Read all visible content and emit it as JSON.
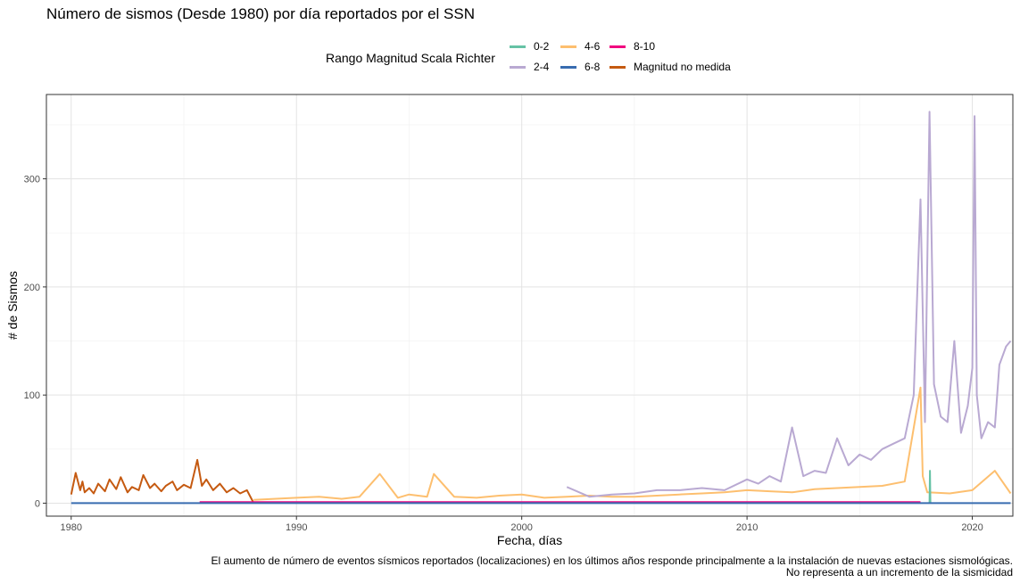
{
  "chart_data": {
    "type": "line",
    "title": "Número de sismos (Desde 1980) por día reportados por el SSN",
    "xlabel": "Fecha, días",
    "ylabel": "# de Sismos",
    "xlim": [
      1978.9,
      2021.8
    ],
    "ylim": [
      -12,
      378
    ],
    "x_ticks": [
      1980,
      1990,
      2000,
      2010,
      2020
    ],
    "y_ticks": [
      0,
      100,
      200,
      300
    ],
    "grid": true,
    "legend": {
      "title": "Rango Magnitud Scala Richter",
      "position": "top",
      "entries": [
        {
          "label": "0-2",
          "color": "#66c2a5"
        },
        {
          "label": "2-4",
          "color": "#b9a9d2"
        },
        {
          "label": "4-6",
          "color": "#fdbf6f"
        },
        {
          "label": "6-8",
          "color": "#386cb0"
        },
        {
          "label": "8-10",
          "color": "#f0027f"
        },
        {
          "label": "Magnitud no medida",
          "color": "#c55a11"
        }
      ]
    },
    "series": [
      {
        "name": "Magnitud no medida",
        "color": "#c55a11",
        "x": [
          1980.0,
          1980.2,
          1980.4,
          1980.5,
          1980.6,
          1980.8,
          1981.0,
          1981.2,
          1981.5,
          1981.7,
          1982.0,
          1982.2,
          1982.5,
          1982.7,
          1983.0,
          1983.2,
          1983.5,
          1983.7,
          1984.0,
          1984.2,
          1984.5,
          1984.7,
          1985.0,
          1985.3,
          1985.6,
          1985.8,
          1986.0,
          1986.3,
          1986.6,
          1986.9,
          1987.2,
          1987.5,
          1987.8,
          1988.1
        ],
        "y": [
          8,
          28,
          12,
          20,
          10,
          14,
          9,
          18,
          11,
          22,
          13,
          24,
          10,
          15,
          12,
          26,
          14,
          18,
          11,
          16,
          20,
          12,
          17,
          14,
          40,
          16,
          22,
          12,
          18,
          10,
          14,
          9,
          12,
          0
        ]
      },
      {
        "name": "4-6",
        "color": "#fdbf6f",
        "x": [
          1988.1,
          1989.0,
          1990.0,
          1991.0,
          1992.0,
          1992.8,
          1993.7,
          1994.5,
          1995.0,
          1995.8,
          1996.1,
          1997.0,
          1998.0,
          1999.0,
          2000.0,
          2001.0,
          2002.0,
          2003.0,
          2004.0,
          2005.0,
          2006.0,
          2007.0,
          2008.0,
          2009.0,
          2010.0,
          2011.0,
          2012.0,
          2013.0,
          2014.0,
          2015.0,
          2016.0,
          2017.0,
          2017.7,
          2017.8,
          2018.0,
          2019.0,
          2020.0,
          2021.0,
          2021.7
        ],
        "y": [
          3,
          4,
          5,
          6,
          4,
          6,
          27,
          5,
          8,
          6,
          27,
          6,
          5,
          7,
          8,
          5,
          6,
          7,
          6,
          6,
          7,
          8,
          9,
          10,
          12,
          11,
          10,
          13,
          14,
          15,
          16,
          20,
          107,
          25,
          10,
          9,
          12,
          30,
          9
        ]
      },
      {
        "name": "2-4",
        "color": "#b9a9d2",
        "x": [
          2002.0,
          2003.0,
          2004.0,
          2005.0,
          2006.0,
          2007.0,
          2008.0,
          2009.0,
          2010.0,
          2010.5,
          2011.0,
          2011.5,
          2012.0,
          2012.5,
          2013.0,
          2013.5,
          2014.0,
          2014.5,
          2015.0,
          2015.5,
          2016.0,
          2016.5,
          2017.0,
          2017.4,
          2017.7,
          2017.9,
          2018.1,
          2018.3,
          2018.6,
          2018.9,
          2019.2,
          2019.5,
          2019.8,
          2020.0,
          2020.1,
          2020.2,
          2020.4,
          2020.7,
          2021.0,
          2021.2,
          2021.5,
          2021.7
        ],
        "y": [
          15,
          6,
          8,
          9,
          12,
          12,
          14,
          12,
          22,
          18,
          25,
          20,
          70,
          25,
          30,
          28,
          60,
          35,
          45,
          40,
          50,
          55,
          60,
          100,
          281,
          75,
          362,
          110,
          80,
          75,
          150,
          65,
          90,
          125,
          358,
          100,
          60,
          75,
          70,
          128,
          145,
          150
        ]
      },
      {
        "name": "0-2",
        "color": "#66c2a5",
        "x": [
          2018.1,
          2018.12,
          2018.14
        ],
        "y": [
          0,
          30,
          0
        ]
      },
      {
        "name": "8-10",
        "color": "#f0027f",
        "x": [
          1985.7,
          1986.0,
          2015.8,
          2017.7
        ],
        "y": [
          1,
          1,
          1,
          1
        ]
      },
      {
        "name": "6-8",
        "color": "#386cb0",
        "x": [
          1980.0,
          2021.7
        ],
        "y": [
          0,
          0
        ]
      }
    ]
  },
  "caption": {
    "line1": "El aumento de número de eventos  sísmicos reportados (localizaciones) en los últimos años responde principalmente a la instalación de nuevas estaciones sismológicas.",
    "line2": "No representa a un incremento de la sismicidad"
  }
}
